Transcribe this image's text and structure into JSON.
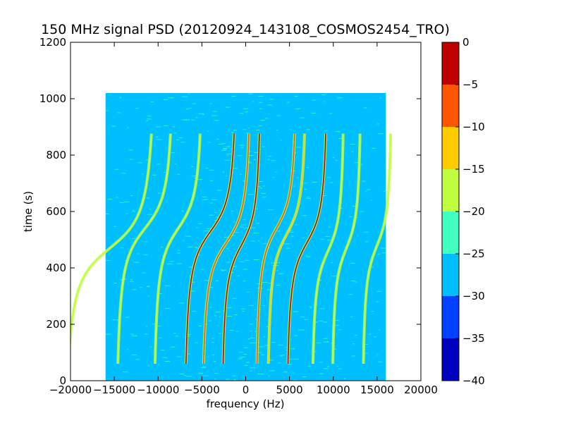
{
  "chart_data": {
    "type": "heatmap",
    "title": "150 MHz signal PSD (20120924_143108_COSMOS2454_TRO)",
    "xlabel": "frequency (Hz)",
    "ylabel": "time (s)",
    "xlim": [
      -20000,
      20000
    ],
    "ylim": [
      0,
      1200
    ],
    "xticks": [
      -20000,
      -15000,
      -10000,
      -5000,
      0,
      5000,
      10000,
      15000,
      20000
    ],
    "yticks": [
      0,
      200,
      400,
      600,
      800,
      1000,
      1200
    ],
    "data_extent": {
      "x": [
        -16000,
        16000
      ],
      "y": [
        0,
        1020
      ]
    },
    "background_level": -27,
    "colorbar": {
      "levels": [
        -40,
        -35,
        -30,
        -25,
        -20,
        -15,
        -10,
        -5,
        0
      ],
      "colors": [
        "#0000bf",
        "#0040ff",
        "#00bfff",
        "#40ffbf",
        "#bfff40",
        "#ffcc00",
        "#ff5500",
        "#bf0000"
      ]
    },
    "traces": [
      {
        "center_hz": -15500,
        "center_s": 470,
        "amplitude_hz": 5500,
        "level": -17
      },
      {
        "center_hz": -11500,
        "center_s": 540,
        "amplitude_hz": 3500,
        "level": -19
      },
      {
        "center_hz": -7700,
        "center_s": 540,
        "amplitude_hz": 3000,
        "level": -18
      },
      {
        "center_hz": -4000,
        "center_s": 530,
        "amplitude_hz": 3200,
        "level": -3
      },
      {
        "center_hz": -2200,
        "center_s": 490,
        "amplitude_hz": 3000,
        "level": -6
      },
      {
        "center_hz": -500,
        "center_s": 480,
        "amplitude_hz": 2400,
        "level": -2
      },
      {
        "center_hz": 3500,
        "center_s": 540,
        "amplitude_hz": 2500,
        "level": -7
      },
      {
        "center_hz": 4700,
        "center_s": 520,
        "amplitude_hz": 2400,
        "level": -13
      },
      {
        "center_hz": 7000,
        "center_s": 490,
        "amplitude_hz": 2500,
        "level": -3
      },
      {
        "center_hz": 9400,
        "center_s": 460,
        "amplitude_hz": 2000,
        "level": -16
      },
      {
        "center_hz": 11500,
        "center_s": 470,
        "amplitude_hz": 1800,
        "level": -18
      },
      {
        "center_hz": 15000,
        "center_s": 480,
        "amplitude_hz": 1800,
        "level": -17
      }
    ]
  }
}
